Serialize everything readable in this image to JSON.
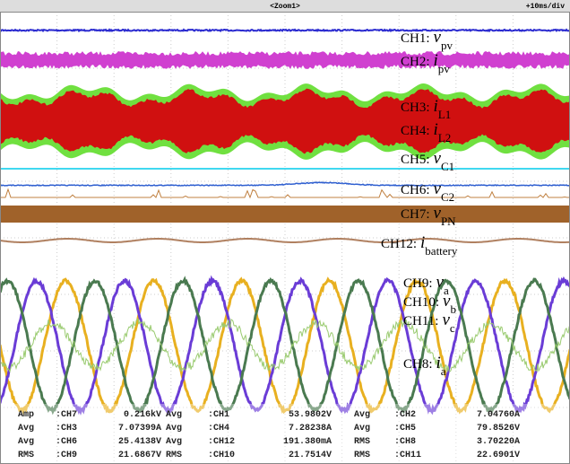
{
  "header": {
    "zoom": "<Zoom1>",
    "timebase": "+10ms/div"
  },
  "channels": [
    {
      "name": "CH1:",
      "symbol": "v",
      "sub": "pv"
    },
    {
      "name": "CH2:",
      "symbol": "i",
      "sub": "pv"
    },
    {
      "name": "CH3:",
      "symbol": "i",
      "sub": "L1"
    },
    {
      "name": "CH4:",
      "symbol": "i",
      "sub": "L2"
    },
    {
      "name": "CH5:",
      "symbol": "v",
      "sub": "C1"
    },
    {
      "name": "CH6:",
      "symbol": "v",
      "sub": "C2"
    },
    {
      "name": "CH7:",
      "symbol": "v",
      "sub": "PN"
    },
    {
      "name": "CH12:",
      "symbol": "i",
      "sub": "battery"
    },
    {
      "name": "CH9:",
      "symbol": "v",
      "sub": "a"
    },
    {
      "name": "CH10:",
      "symbol": "v",
      "sub": "b"
    },
    {
      "name": "CH11:",
      "symbol": "v",
      "sub": "c"
    },
    {
      "name": "CH8:",
      "symbol": "i",
      "sub": "a"
    }
  ],
  "measurements": [
    [
      [
        "Amp",
        ":CH7",
        "0.216kV"
      ],
      [
        "Avg",
        ":CH1",
        "53.9802V"
      ],
      [
        "Avg",
        ":CH2",
        "7.04760A"
      ]
    ],
    [
      [
        "Avg",
        ":CH3",
        "7.07399A"
      ],
      [
        "Avg",
        ":CH4",
        "7.28238A"
      ],
      [
        "Avg",
        ":CH5",
        "79.8526V"
      ]
    ],
    [
      [
        "Avg",
        ":CH6",
        "25.4138V"
      ],
      [
        "Avg",
        ":CH12",
        "191.380mA"
      ],
      [
        "RMS",
        ":CH8",
        "3.70220A"
      ]
    ],
    [
      [
        "RMS",
        ":CH9",
        "21.6867V"
      ],
      [
        "RMS",
        ":CH10",
        "21.7514V"
      ],
      [
        "RMS",
        ":CH11",
        "22.6901V"
      ]
    ]
  ]
}
